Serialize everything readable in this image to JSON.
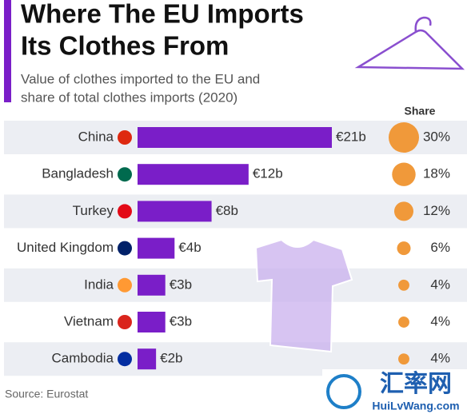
{
  "chart_data": {
    "type": "bar",
    "title_lines": [
      "Where The EU Imports",
      "Its Clothes From"
    ],
    "subtitle_lines": [
      "Value of clothes imported to the EU and",
      "share of total clothes imports (2020)"
    ],
    "categories": [
      "China",
      "Bangladesh",
      "Turkey",
      "United Kingdom",
      "India",
      "Vietnam",
      "Cambodia"
    ],
    "values": [
      21,
      12,
      8,
      4,
      3,
      3,
      2
    ],
    "value_labels": [
      "€21b",
      "€12b",
      "€8b",
      "€4b",
      "€3b",
      "€3b",
      "€2b"
    ],
    "color": "#7a1ec8",
    "share": {
      "name": "Share",
      "values": [
        30,
        18,
        12,
        6,
        4,
        4,
        4
      ],
      "value_labels": [
        "30%",
        "18%",
        "12%",
        "6%",
        "4%",
        "4%",
        "4%"
      ],
      "color": "#f0993a"
    },
    "source": "Source: Eurostat",
    "watermark": [
      "汇率网",
      "HuiLvWang.com"
    ]
  }
}
